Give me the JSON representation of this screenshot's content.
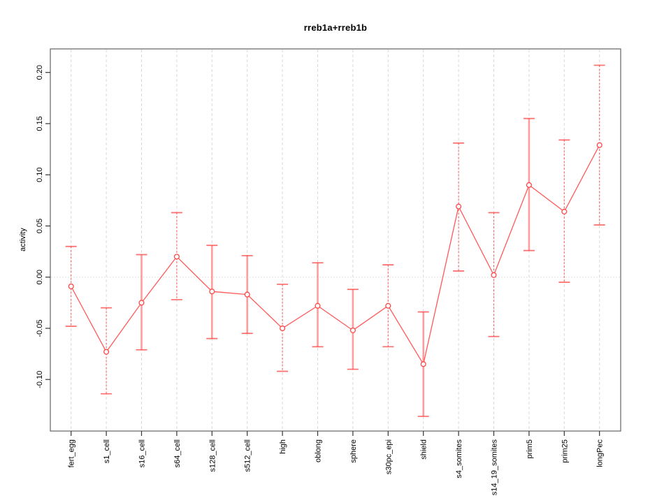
{
  "title": "rreb1a+rreb1b",
  "chart_data": {
    "type": "line",
    "subtype": "points-with-error-bars",
    "title": "rreb1a+rreb1b",
    "xlabel": "",
    "ylabel": "activity",
    "ylim": [
      -0.15,
      0.223
    ],
    "grid": "vertical dashed gridline at every category; dotted horizontal line at y=0; no legend",
    "legend_position": "none",
    "series_color": "#ff4747",
    "errorbar_light_color": "#ff9d9d",
    "gridline_color": "#d9d9d9",
    "frame_color": "#6e6e6e",
    "tick_color": "#333333",
    "yticks": [
      {
        "label": "0.20",
        "value": 0.2
      },
      {
        "label": "0.15",
        "value": 0.15
      },
      {
        "label": "0.10",
        "value": 0.1
      },
      {
        "label": "0.05",
        "value": 0.05
      },
      {
        "label": "0.00",
        "value": 0.0
      },
      {
        "label": "-0.05",
        "value": -0.05
      },
      {
        "label": "-0.10",
        "value": -0.1
      }
    ],
    "categories": [
      "fert_egg",
      "s1_cell",
      "s16_cell",
      "s64_cell",
      "s128_cell",
      "s512_cell",
      "high",
      "oblong",
      "sphere",
      "s30pc_epi",
      "shield",
      "s4_somites",
      "s14_19_somites",
      "prim5",
      "prim25",
      "longPec"
    ],
    "points": [
      {
        "category": "fert_egg",
        "value": -0.009,
        "lo": -0.048,
        "hi": 0.03,
        "bar_style": "dashed"
      },
      {
        "category": "s1_cell",
        "value": -0.073,
        "lo": -0.114,
        "hi": -0.03,
        "bar_style": "dashed"
      },
      {
        "category": "s16_cell",
        "value": -0.025,
        "lo": -0.071,
        "hi": 0.022,
        "bar_style": "solid"
      },
      {
        "category": "s64_cell",
        "value": 0.02,
        "lo": -0.022,
        "hi": 0.063,
        "bar_style": "dashed"
      },
      {
        "category": "s128_cell",
        "value": -0.014,
        "lo": -0.06,
        "hi": 0.031,
        "bar_style": "solid"
      },
      {
        "category": "s512_cell",
        "value": -0.017,
        "lo": -0.055,
        "hi": 0.021,
        "bar_style": "solid"
      },
      {
        "category": "high",
        "value": -0.05,
        "lo": -0.092,
        "hi": -0.007,
        "bar_style": "dashed"
      },
      {
        "category": "oblong",
        "value": -0.028,
        "lo": -0.068,
        "hi": 0.014,
        "bar_style": "solid"
      },
      {
        "category": "sphere",
        "value": -0.052,
        "lo": -0.09,
        "hi": -0.012,
        "bar_style": "solid"
      },
      {
        "category": "s30pc_epi",
        "value": -0.028,
        "lo": -0.068,
        "hi": 0.012,
        "bar_style": "dashed"
      },
      {
        "category": "shield",
        "value": -0.085,
        "lo": -0.136,
        "hi": -0.034,
        "bar_style": "solid"
      },
      {
        "category": "s4_somites",
        "value": 0.069,
        "lo": 0.006,
        "hi": 0.131,
        "bar_style": "dashed"
      },
      {
        "category": "s14_19_somites",
        "value": 0.002,
        "lo": -0.058,
        "hi": 0.063,
        "bar_style": "dashed"
      },
      {
        "category": "prim5",
        "value": 0.09,
        "lo": 0.026,
        "hi": 0.155,
        "bar_style": "solid"
      },
      {
        "category": "prim25",
        "value": 0.064,
        "lo": -0.005,
        "hi": 0.134,
        "bar_style": "dashed"
      },
      {
        "category": "longPec",
        "value": 0.129,
        "lo": 0.051,
        "hi": 0.207,
        "bar_style": "dashed"
      }
    ]
  }
}
